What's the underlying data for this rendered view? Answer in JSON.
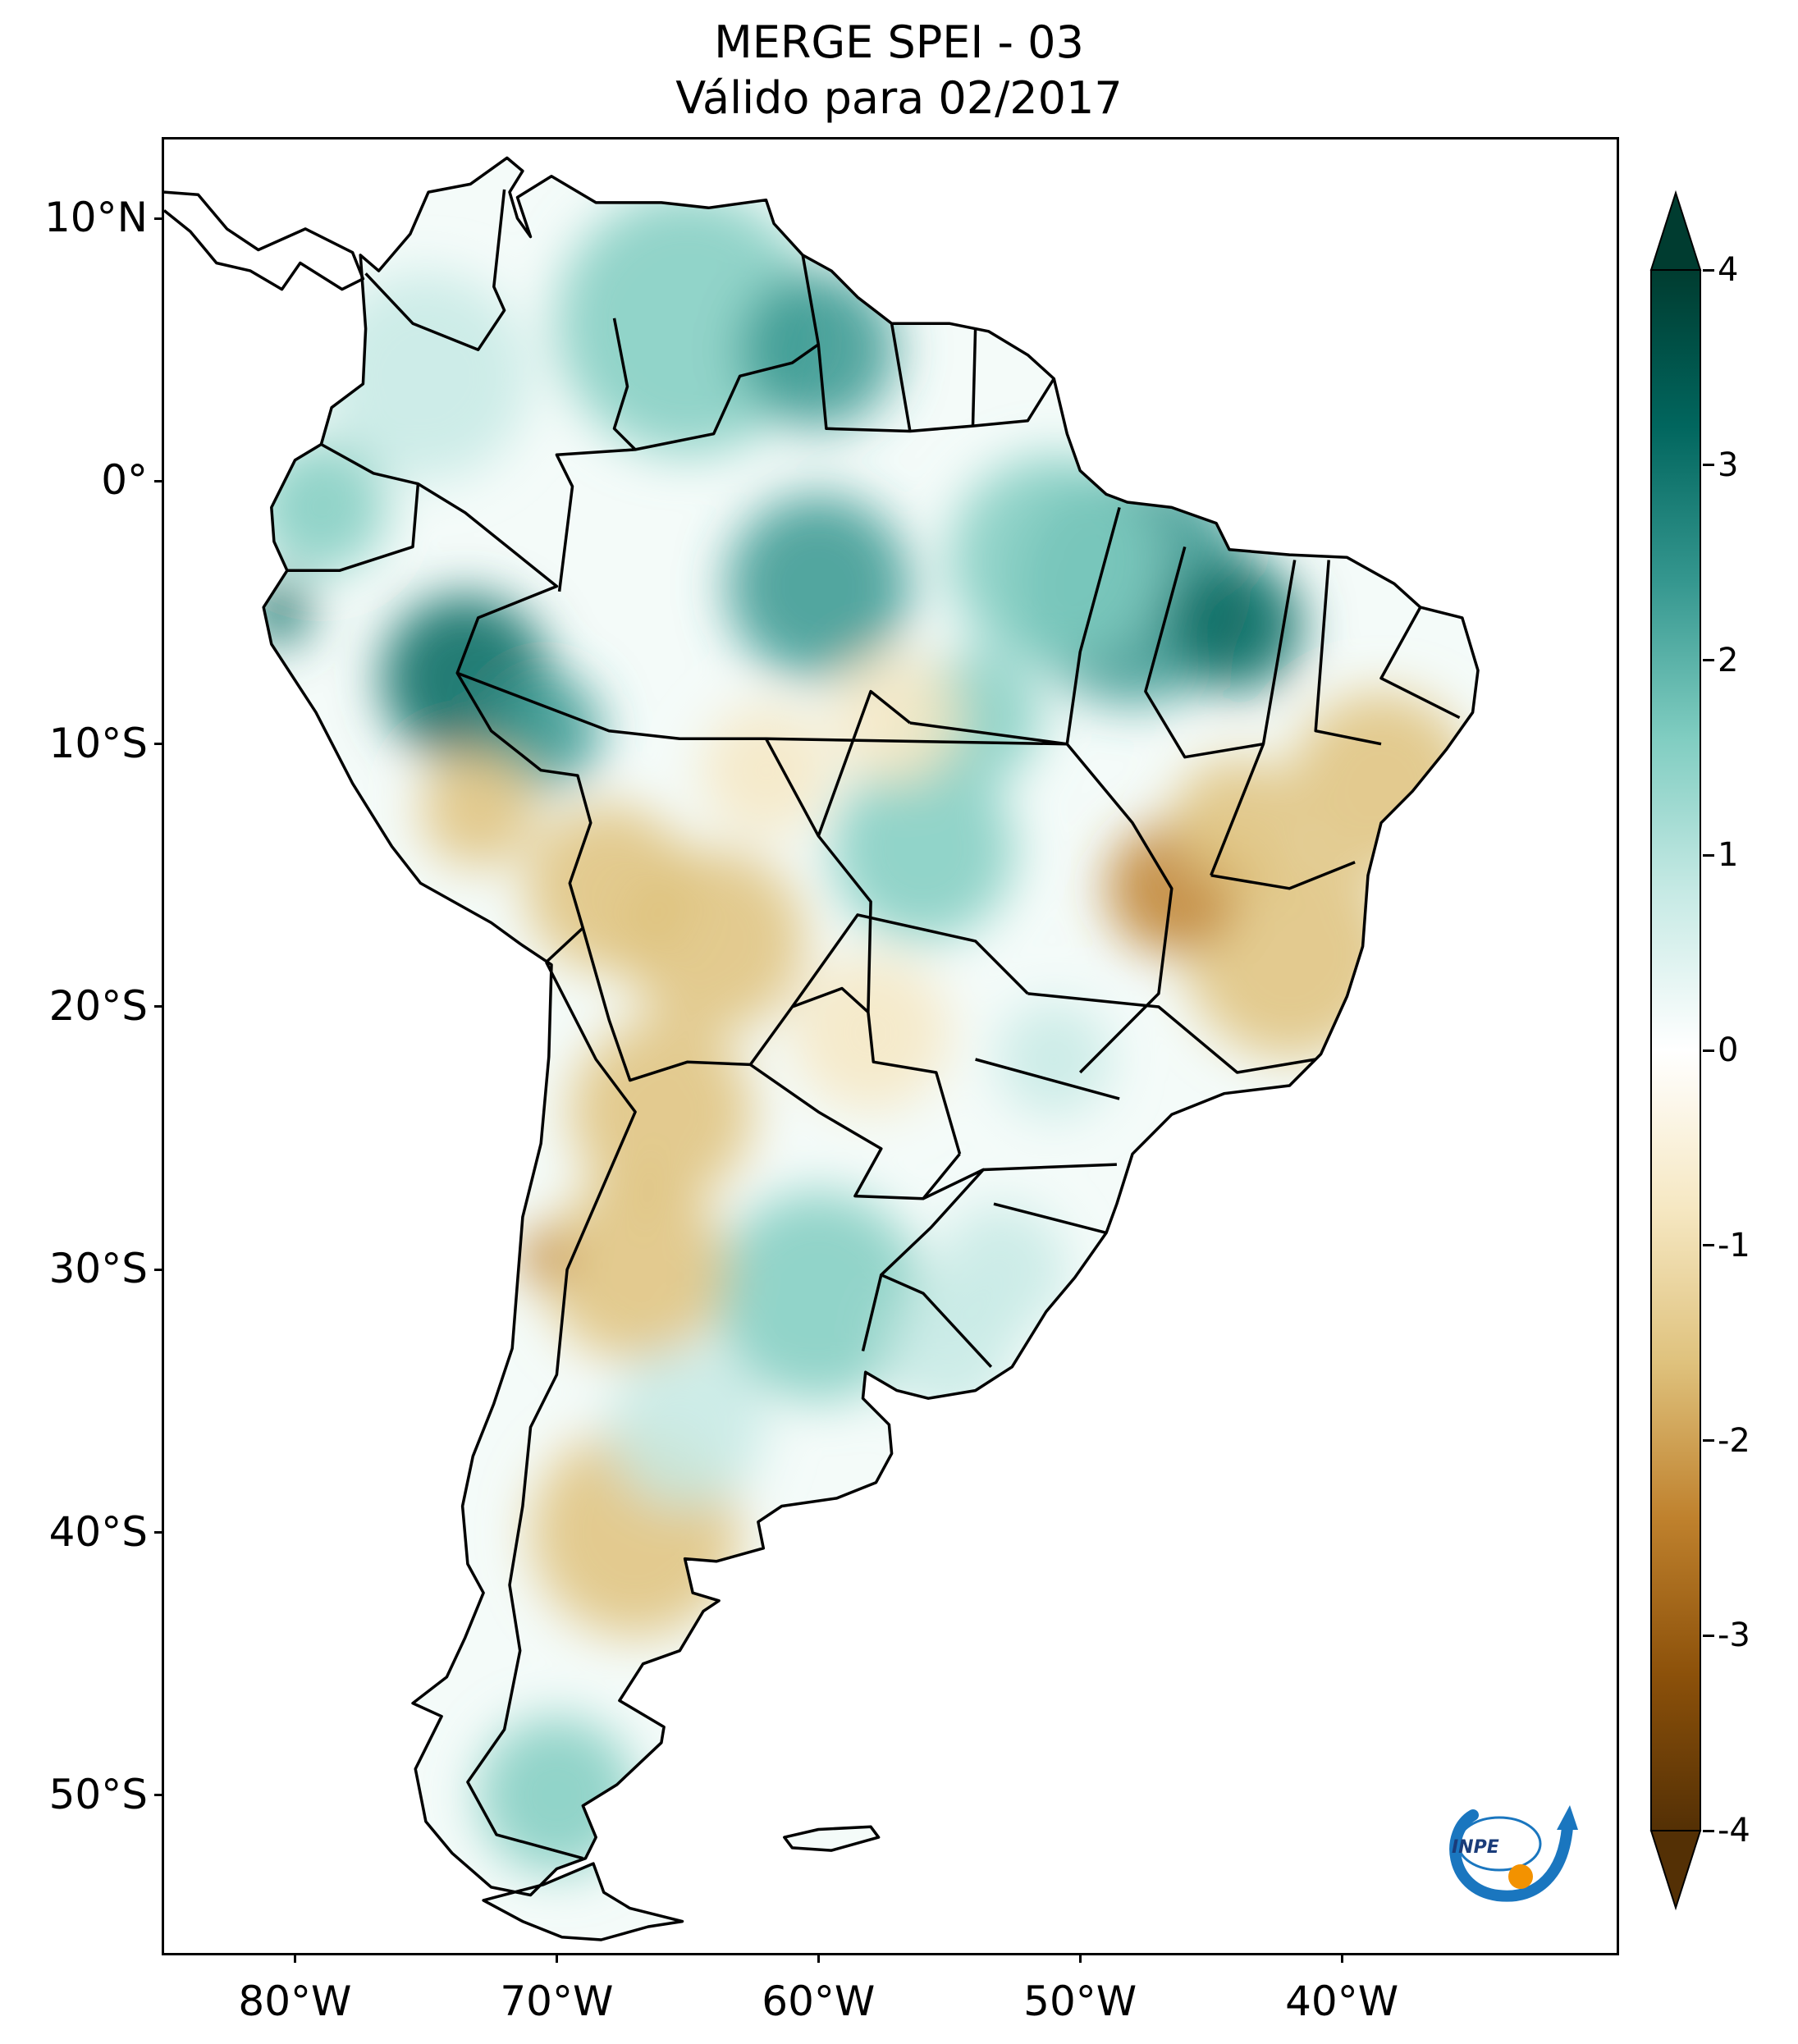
{
  "title": {
    "line1": "MERGE   SPEI - 03",
    "line2": "Válido para 02/2017"
  },
  "map": {
    "region": "South America",
    "variable": "SPEI - 03",
    "lon_range": [
      -85,
      -29.5
    ],
    "lat_range": [
      -56,
      13
    ],
    "lat_ticks": [
      {
        "value": 10,
        "label": "10°N"
      },
      {
        "value": 0,
        "label": "0°"
      },
      {
        "value": -10,
        "label": "10°S"
      },
      {
        "value": -20,
        "label": "20°S"
      },
      {
        "value": -30,
        "label": "30°S"
      },
      {
        "value": -40,
        "label": "40°S"
      },
      {
        "value": -50,
        "label": "50°S"
      }
    ],
    "lon_ticks": [
      {
        "value": -80,
        "label": "80°W"
      },
      {
        "value": -70,
        "label": "70°W"
      },
      {
        "value": -60,
        "label": "60°W"
      },
      {
        "value": -50,
        "label": "50°W"
      },
      {
        "value": -40,
        "label": "40°W"
      }
    ]
  },
  "colorbar": {
    "min": -4,
    "max": 4,
    "extend": "both",
    "ticks": [
      {
        "value": 4,
        "label": "4"
      },
      {
        "value": 3,
        "label": "3"
      },
      {
        "value": 2,
        "label": "2"
      },
      {
        "value": 1,
        "label": "1"
      },
      {
        "value": 0,
        "label": "0"
      },
      {
        "value": -1,
        "label": "-1"
      },
      {
        "value": -2,
        "label": "-2"
      },
      {
        "value": -3,
        "label": "-3"
      },
      {
        "value": -4,
        "label": "-4"
      }
    ],
    "colors": [
      "#543005",
      "#8c510a",
      "#bf812d",
      "#dfc27d",
      "#f6e8c3",
      "#ffffff",
      "#c7eae5",
      "#80cdc1",
      "#35978f",
      "#01665e",
      "#003c30"
    ]
  },
  "logo": {
    "text": "INPE"
  }
}
